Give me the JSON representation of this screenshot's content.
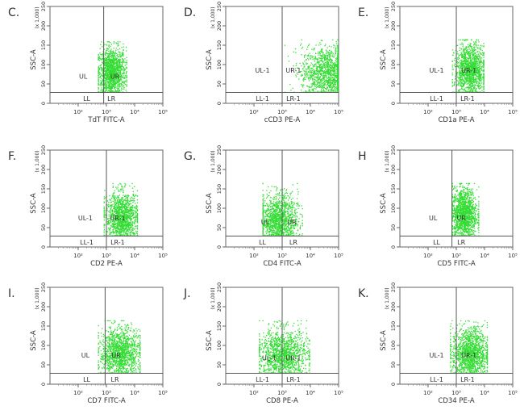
{
  "chart_data": [
    {
      "type": "scatter",
      "panel": "C.",
      "xlabel": "TdT FITC-A",
      "ylabel": "SSC-A",
      "y_scale_label": "(x 1,000)",
      "xscale": "log",
      "xlim": [
        10,
        100000
      ],
      "ylim": [
        0,
        250
      ],
      "xticks": [
        "10²",
        "10³",
        "10⁴",
        "10⁵"
      ],
      "xtick_values": [
        100,
        1000,
        10000,
        100000
      ],
      "yticks": [
        "0",
        "50",
        "100",
        "150",
        "200",
        "250"
      ],
      "ytick_values": [
        0,
        50,
        100,
        150,
        200,
        250
      ],
      "gate": {
        "x": 800,
        "y": 28
      },
      "quadrants": {
        "UL": "UL",
        "UR": "UR",
        "LL": "LL",
        "LR": "LR"
      },
      "quadrant_label_positions": {
        "UL": [
          150,
          70
        ],
        "UR": [
          2000,
          70
        ],
        "LL": [
          200,
          12
        ],
        "LR": [
          1500,
          12
        ]
      },
      "population": {
        "x_range": [
          500,
          5000
        ],
        "y_range": [
          30,
          160
        ],
        "x_center": 1500,
        "y_center": 80,
        "point_color": "#33dd33"
      }
    },
    {
      "type": "scatter",
      "panel": "D.",
      "xlabel": "cCD3 PE-A",
      "ylabel": "SSC-A",
      "y_scale_label": "(x 1,000)",
      "xscale": "log",
      "xlim": [
        10,
        100000
      ],
      "ylim": [
        0,
        250
      ],
      "xticks": [
        "10²",
        "10³",
        "10⁴",
        "10⁵"
      ],
      "xtick_values": [
        100,
        1000,
        10000,
        100000
      ],
      "yticks": [
        "0",
        "50",
        "100",
        "150",
        "200",
        "250"
      ],
      "ytick_values": [
        0,
        50,
        100,
        150,
        200,
        250
      ],
      "gate": {
        "x": 1000,
        "y": 28
      },
      "quadrants": {
        "UL": "UL-1",
        "UR": "UR-1",
        "LL": "LL-1",
        "LR": "LR-1"
      },
      "quadrant_label_positions": {
        "UL": [
          200,
          85
        ],
        "UR": [
          2500,
          85
        ],
        "LL": [
          200,
          12
        ],
        "LR": [
          2500,
          12
        ]
      },
      "population": {
        "x_range": [
          1200,
          90000
        ],
        "y_range": [
          30,
          165
        ],
        "x_center": 40000,
        "y_center": 80,
        "point_color": "#33dd33"
      }
    },
    {
      "type": "scatter",
      "panel": "E.",
      "xlabel": "CD1a PE-A",
      "ylabel": "SSC-A",
      "y_scale_label": "(x 1,000)",
      "xscale": "log",
      "xlim": [
        10,
        100000
      ],
      "ylim": [
        0,
        250
      ],
      "xticks": [
        "10²",
        "10³",
        "10⁴",
        "10⁵"
      ],
      "xtick_values": [
        100,
        1000,
        10000,
        100000
      ],
      "yticks": [
        "0",
        "50",
        "100",
        "150",
        "200",
        "250"
      ],
      "ytick_values": [
        0,
        50,
        100,
        150,
        200,
        250
      ],
      "gate": {
        "x": 1000,
        "y": 28
      },
      "quadrants": {
        "UL": "UL-1",
        "UR": "UR-1",
        "LL": "LL-1",
        "LR": "LR-1"
      },
      "quadrant_label_positions": {
        "UL": [
          200,
          85
        ],
        "UR": [
          2800,
          85
        ],
        "LL": [
          200,
          12
        ],
        "LR": [
          2500,
          12
        ]
      },
      "population": {
        "x_range": [
          700,
          9000
        ],
        "y_range": [
          30,
          165
        ],
        "x_center": 3000,
        "y_center": 85,
        "point_color": "#33dd33"
      }
    },
    {
      "type": "scatter",
      "panel": "F.",
      "xlabel": "CD2 PE-A",
      "ylabel": "SSC-A",
      "y_scale_label": "(x 1,000)",
      "xscale": "log",
      "xlim": [
        10,
        100000
      ],
      "ylim": [
        0,
        250
      ],
      "xticks": [
        "10²",
        "10³",
        "10⁴",
        "10⁵"
      ],
      "xtick_values": [
        100,
        1000,
        10000,
        100000
      ],
      "yticks": [
        "0",
        "50",
        "100",
        "150",
        "200",
        "250"
      ],
      "ytick_values": [
        0,
        50,
        100,
        150,
        200,
        250
      ],
      "gate": {
        "x": 1000,
        "y": 28
      },
      "quadrants": {
        "UL": "UL-1",
        "UR": "UR-1",
        "LL": "LL-1",
        "LR": "LR-1"
      },
      "quadrant_label_positions": {
        "UL": [
          180,
          75
        ],
        "UR": [
          2500,
          75
        ],
        "LL": [
          200,
          12
        ],
        "LR": [
          2500,
          12
        ]
      },
      "population": {
        "x_range": [
          800,
          12000
        ],
        "y_range": [
          30,
          165
        ],
        "x_center": 3500,
        "y_center": 75,
        "point_color": "#33dd33"
      }
    },
    {
      "type": "scatter",
      "panel": "G.",
      "xlabel": "CD4 FITC-A",
      "ylabel": "SSC-A",
      "y_scale_label": "(x 1,000)",
      "xscale": "log",
      "xlim": [
        10,
        100000
      ],
      "ylim": [
        0,
        250
      ],
      "xticks": [
        "10²",
        "10³",
        "10⁴",
        "10⁵"
      ],
      "xtick_values": [
        100,
        1000,
        10000,
        100000
      ],
      "yticks": [
        "0",
        "50",
        "100",
        "150",
        "200",
        "250"
      ],
      "ytick_values": [
        0,
        50,
        100,
        150,
        200,
        250
      ],
      "gate": {
        "x": 1000,
        "y": 28
      },
      "quadrants": {
        "UL": "UL",
        "UR": "UR",
        "LL": "LL",
        "LR": "LR"
      },
      "quadrant_label_positions": {
        "UL": [
          250,
          65
        ],
        "UR": [
          2200,
          65
        ],
        "LL": [
          200,
          12
        ],
        "LR": [
          2500,
          12
        ]
      },
      "population": {
        "x_range": [
          200,
          5000
        ],
        "y_range": [
          30,
          165
        ],
        "x_center": 700,
        "y_center": 70,
        "point_color": "#33dd33"
      }
    },
    {
      "type": "scatter",
      "panel": "H",
      "xlabel": "CD5 FITC-A",
      "ylabel": "SSC-A",
      "y_scale_label": "(x 1,000)",
      "xscale": "log",
      "xlim": [
        10,
        100000
      ],
      "ylim": [
        0,
        250
      ],
      "xticks": [
        "10²",
        "10³",
        "10⁴",
        "10⁵"
      ],
      "xtick_values": [
        100,
        1000,
        10000,
        100000
      ],
      "yticks": [
        "0",
        "50",
        "100",
        "150",
        "200",
        "250"
      ],
      "ytick_values": [
        0,
        50,
        100,
        150,
        200,
        250
      ],
      "gate": {
        "x": 700,
        "y": 28
      },
      "quadrants": {
        "UL": "UL",
        "UR": "UR",
        "LL": "LL",
        "LR": "LR"
      },
      "quadrant_label_positions": {
        "UL": [
          150,
          75
        ],
        "UR": [
          1500,
          75
        ],
        "LL": [
          200,
          12
        ],
        "LR": [
          1500,
          12
        ]
      },
      "population": {
        "x_range": [
          700,
          6000
        ],
        "y_range": [
          30,
          165
        ],
        "x_center": 1800,
        "y_center": 85,
        "point_color": "#33dd33"
      }
    },
    {
      "type": "scatter",
      "panel": "I.",
      "xlabel": "CD7 FITC-A",
      "ylabel": "SSC-A",
      "y_scale_label": "(x 1,000)",
      "xscale": "log",
      "xlim": [
        10,
        100000
      ],
      "ylim": [
        0,
        250
      ],
      "xticks": [
        "10²",
        "10³",
        "10⁴",
        "10⁵"
      ],
      "xtick_values": [
        100,
        1000,
        10000,
        100000
      ],
      "yticks": [
        "0",
        "50",
        "100",
        "150",
        "200",
        "250"
      ],
      "ytick_values": [
        0,
        50,
        100,
        150,
        200,
        250
      ],
      "gate": {
        "x": 900,
        "y": 28
      },
      "quadrants": {
        "UL": "UL",
        "UR": "UR",
        "LL": "LL",
        "LR": "LR"
      },
      "quadrant_label_positions": {
        "UL": [
          180,
          75
        ],
        "UR": [
          2200,
          75
        ],
        "LL": [
          200,
          12
        ],
        "LR": [
          2000,
          12
        ]
      },
      "population": {
        "x_range": [
          500,
          15000
        ],
        "y_range": [
          30,
          165
        ],
        "x_center": 3000,
        "y_center": 80,
        "point_color": "#33dd33"
      }
    },
    {
      "type": "scatter",
      "panel": "J.",
      "xlabel": "CD8 PE-A",
      "ylabel": "SSC-A",
      "y_scale_label": "(x 1,000)",
      "xscale": "log",
      "xlim": [
        10,
        100000
      ],
      "ylim": [
        0,
        250
      ],
      "xticks": [
        "10²",
        "10³",
        "10⁴",
        "10⁵"
      ],
      "xtick_values": [
        100,
        1000,
        10000,
        100000
      ],
      "yticks": [
        "0",
        "50",
        "100",
        "150",
        "200",
        "250"
      ],
      "ytick_values": [
        0,
        50,
        100,
        150,
        200,
        250
      ],
      "gate": {
        "x": 1000,
        "y": 28
      },
      "quadrants": {
        "UL": "UL-1",
        "UR": "UR-1",
        "LL": "LL-1",
        "LR": "LR-1"
      },
      "quadrant_label_positions": {
        "UL": [
          350,
          68
        ],
        "UR": [
          2500,
          68
        ],
        "LL": [
          200,
          12
        ],
        "LR": [
          2500,
          12
        ]
      },
      "population": {
        "x_range": [
          150,
          9000
        ],
        "y_range": [
          30,
          165
        ],
        "x_center": 1000,
        "y_center": 75,
        "point_color": "#33dd33"
      }
    },
    {
      "type": "scatter",
      "panel": "K.",
      "xlabel": "CD34 PE-A",
      "ylabel": "SSC-A",
      "y_scale_label": "(x 1,000)",
      "xscale": "log",
      "xlim": [
        10,
        100000
      ],
      "ylim": [
        0,
        250
      ],
      "xticks": [
        "10²",
        "10³",
        "10⁴",
        "10⁵"
      ],
      "xtick_values": [
        100,
        1000,
        10000,
        100000
      ],
      "yticks": [
        "0",
        "50",
        "100",
        "150",
        "200",
        "250"
      ],
      "ytick_values": [
        0,
        50,
        100,
        150,
        200,
        250
      ],
      "gate": {
        "x": 1000,
        "y": 28
      },
      "quadrants": {
        "UL": "UL-1",
        "UR": "UR-1",
        "LL": "LL-1",
        "LR": "LR-1"
      },
      "quadrant_label_positions": {
        "UL": [
          200,
          75
        ],
        "UR": [
          2800,
          75
        ],
        "LL": [
          200,
          12
        ],
        "LR": [
          2500,
          12
        ]
      },
      "population": {
        "x_range": [
          600,
          12000
        ],
        "y_range": [
          30,
          165
        ],
        "x_center": 3000,
        "y_center": 80,
        "point_color": "#33dd33"
      }
    }
  ]
}
